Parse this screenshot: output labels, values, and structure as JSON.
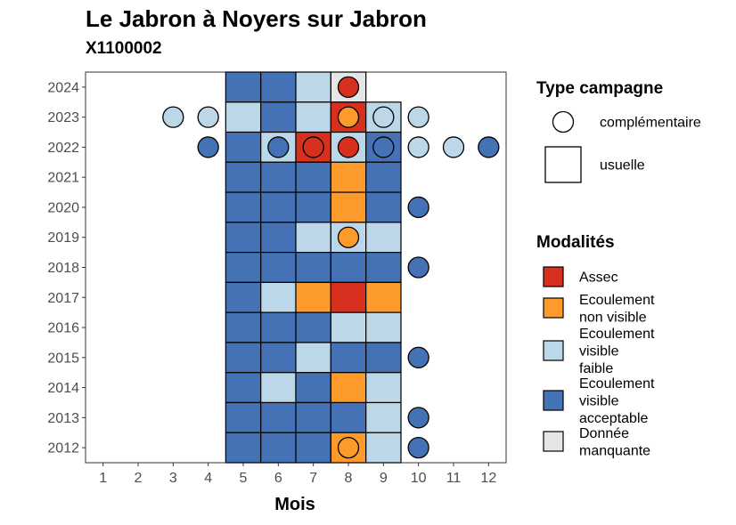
{
  "chart_data": {
    "type": "heatmap",
    "title": "Le Jabron à Noyers sur Jabron",
    "subtitle": "X1100002",
    "xlabel": "Mois",
    "ylabel": "",
    "x_ticks": [
      "1",
      "2",
      "3",
      "4",
      "5",
      "6",
      "7",
      "8",
      "9",
      "10",
      "11",
      "12"
    ],
    "y_ticks": [
      "2012",
      "2013",
      "2014",
      "2015",
      "2016",
      "2017",
      "2018",
      "2019",
      "2020",
      "2021",
      "2022",
      "2023",
      "2024"
    ],
    "xlim": [
      0.5,
      12.5
    ],
    "ylim": [
      2011.5,
      2024.5
    ],
    "colors": {
      "assec": "#d7301f",
      "ecoulement_non_visible": "#fd9a2c",
      "ecoulement_visible_faible": "#bcd7e7",
      "ecoulement_visible_acceptable": "#4472b4",
      "donnee_manquante": "#e6e6e6"
    },
    "legend_campagne": {
      "title": "Type campagne",
      "entries": [
        {
          "label": "complémentaire",
          "shape": "circle"
        },
        {
          "label": "usuelle",
          "shape": "square"
        }
      ]
    },
    "legend_modalites": {
      "title": "Modalités",
      "entries": [
        {
          "key": "assec",
          "lines": [
            "Assec"
          ]
        },
        {
          "key": "ecoulement_non_visible",
          "lines": [
            "Ecoulement",
            "non visible"
          ]
        },
        {
          "key": "ecoulement_visible_faible",
          "lines": [
            "Ecoulement",
            "visible",
            "faible"
          ]
        },
        {
          "key": "ecoulement_visible_acceptable",
          "lines": [
            "Ecoulement",
            "visible",
            "acceptable"
          ]
        },
        {
          "key": "donnee_manquante",
          "lines": [
            "Donnée",
            "manquante"
          ]
        }
      ]
    },
    "usuelle": [
      {
        "year": 2024,
        "month": 5,
        "value": "ecoulement_visible_acceptable"
      },
      {
        "year": 2024,
        "month": 6,
        "value": "ecoulement_visible_acceptable"
      },
      {
        "year": 2024,
        "month": 7,
        "value": "ecoulement_visible_faible"
      },
      {
        "year": 2024,
        "month": 8,
        "value": "donnee_manquante"
      },
      {
        "year": 2023,
        "month": 5,
        "value": "ecoulement_visible_faible"
      },
      {
        "year": 2023,
        "month": 6,
        "value": "ecoulement_visible_acceptable"
      },
      {
        "year": 2023,
        "month": 7,
        "value": "ecoulement_visible_faible"
      },
      {
        "year": 2023,
        "month": 8,
        "value": "assec"
      },
      {
        "year": 2023,
        "month": 9,
        "value": "ecoulement_visible_faible"
      },
      {
        "year": 2022,
        "month": 5,
        "value": "ecoulement_visible_acceptable"
      },
      {
        "year": 2022,
        "month": 6,
        "value": "ecoulement_visible_faible"
      },
      {
        "year": 2022,
        "month": 7,
        "value": "assec"
      },
      {
        "year": 2022,
        "month": 8,
        "value": "ecoulement_visible_faible"
      },
      {
        "year": 2022,
        "month": 9,
        "value": "ecoulement_visible_acceptable"
      },
      {
        "year": 2021,
        "month": 5,
        "value": "ecoulement_visible_acceptable"
      },
      {
        "year": 2021,
        "month": 6,
        "value": "ecoulement_visible_acceptable"
      },
      {
        "year": 2021,
        "month": 7,
        "value": "ecoulement_visible_acceptable"
      },
      {
        "year": 2021,
        "month": 8,
        "value": "ecoulement_non_visible"
      },
      {
        "year": 2021,
        "month": 9,
        "value": "ecoulement_visible_acceptable"
      },
      {
        "year": 2020,
        "month": 5,
        "value": "ecoulement_visible_acceptable"
      },
      {
        "year": 2020,
        "month": 6,
        "value": "ecoulement_visible_acceptable"
      },
      {
        "year": 2020,
        "month": 7,
        "value": "ecoulement_visible_acceptable"
      },
      {
        "year": 2020,
        "month": 8,
        "value": "ecoulement_non_visible"
      },
      {
        "year": 2020,
        "month": 9,
        "value": "ecoulement_visible_acceptable"
      },
      {
        "year": 2019,
        "month": 5,
        "value": "ecoulement_visible_acceptable"
      },
      {
        "year": 2019,
        "month": 6,
        "value": "ecoulement_visible_acceptable"
      },
      {
        "year": 2019,
        "month": 7,
        "value": "ecoulement_visible_faible"
      },
      {
        "year": 2019,
        "month": 8,
        "value": "ecoulement_visible_faible"
      },
      {
        "year": 2019,
        "month": 9,
        "value": "ecoulement_visible_faible"
      },
      {
        "year": 2018,
        "month": 5,
        "value": "ecoulement_visible_acceptable"
      },
      {
        "year": 2018,
        "month": 6,
        "value": "ecoulement_visible_acceptable"
      },
      {
        "year": 2018,
        "month": 7,
        "value": "ecoulement_visible_acceptable"
      },
      {
        "year": 2018,
        "month": 8,
        "value": "ecoulement_visible_acceptable"
      },
      {
        "year": 2018,
        "month": 9,
        "value": "ecoulement_visible_acceptable"
      },
      {
        "year": 2017,
        "month": 5,
        "value": "ecoulement_visible_acceptable"
      },
      {
        "year": 2017,
        "month": 6,
        "value": "ecoulement_visible_faible"
      },
      {
        "year": 2017,
        "month": 7,
        "value": "ecoulement_non_visible"
      },
      {
        "year": 2017,
        "month": 8,
        "value": "assec"
      },
      {
        "year": 2017,
        "month": 9,
        "value": "ecoulement_non_visible"
      },
      {
        "year": 2016,
        "month": 5,
        "value": "ecoulement_visible_acceptable"
      },
      {
        "year": 2016,
        "month": 6,
        "value": "ecoulement_visible_acceptable"
      },
      {
        "year": 2016,
        "month": 7,
        "value": "ecoulement_visible_acceptable"
      },
      {
        "year": 2016,
        "month": 8,
        "value": "ecoulement_visible_faible"
      },
      {
        "year": 2016,
        "month": 9,
        "value": "ecoulement_visible_faible"
      },
      {
        "year": 2015,
        "month": 5,
        "value": "ecoulement_visible_acceptable"
      },
      {
        "year": 2015,
        "month": 6,
        "value": "ecoulement_visible_acceptable"
      },
      {
        "year": 2015,
        "month": 7,
        "value": "ecoulement_visible_faible"
      },
      {
        "year": 2015,
        "month": 8,
        "value": "ecoulement_visible_acceptable"
      },
      {
        "year": 2015,
        "month": 9,
        "value": "ecoulement_visible_acceptable"
      },
      {
        "year": 2014,
        "month": 5,
        "value": "ecoulement_visible_acceptable"
      },
      {
        "year": 2014,
        "month": 6,
        "value": "ecoulement_visible_faible"
      },
      {
        "year": 2014,
        "month": 7,
        "value": "ecoulement_visible_acceptable"
      },
      {
        "year": 2014,
        "month": 8,
        "value": "ecoulement_non_visible"
      },
      {
        "year": 2014,
        "month": 9,
        "value": "ecoulement_visible_faible"
      },
      {
        "year": 2013,
        "month": 5,
        "value": "ecoulement_visible_acceptable"
      },
      {
        "year": 2013,
        "month": 6,
        "value": "ecoulement_visible_acceptable"
      },
      {
        "year": 2013,
        "month": 7,
        "value": "ecoulement_visible_acceptable"
      },
      {
        "year": 2013,
        "month": 8,
        "value": "ecoulement_visible_acceptable"
      },
      {
        "year": 2013,
        "month": 9,
        "value": "ecoulement_visible_faible"
      },
      {
        "year": 2012,
        "month": 5,
        "value": "ecoulement_visible_acceptable"
      },
      {
        "year": 2012,
        "month": 6,
        "value": "ecoulement_visible_acceptable"
      },
      {
        "year": 2012,
        "month": 7,
        "value": "ecoulement_visible_acceptable"
      },
      {
        "year": 2012,
        "month": 8,
        "value": "ecoulement_non_visible"
      },
      {
        "year": 2012,
        "month": 9,
        "value": "ecoulement_visible_faible"
      }
    ],
    "complementaire": [
      {
        "year": 2024,
        "month": 8,
        "value": "assec"
      },
      {
        "year": 2023,
        "month": 3,
        "value": "ecoulement_visible_faible"
      },
      {
        "year": 2023,
        "month": 4,
        "value": "ecoulement_visible_faible"
      },
      {
        "year": 2023,
        "month": 8,
        "value": "ecoulement_non_visible"
      },
      {
        "year": 2023,
        "month": 9,
        "value": "ecoulement_visible_faible"
      },
      {
        "year": 2023,
        "month": 10,
        "value": "ecoulement_visible_faible"
      },
      {
        "year": 2022,
        "month": 4,
        "value": "ecoulement_visible_acceptable"
      },
      {
        "year": 2022,
        "month": 6,
        "value": "ecoulement_visible_acceptable"
      },
      {
        "year": 2022,
        "month": 7,
        "value": "assec"
      },
      {
        "year": 2022,
        "month": 8,
        "value": "assec"
      },
      {
        "year": 2022,
        "month": 9,
        "value": "ecoulement_visible_acceptable"
      },
      {
        "year": 2022,
        "month": 10,
        "value": "ecoulement_visible_faible"
      },
      {
        "year": 2022,
        "month": 11,
        "value": "ecoulement_visible_faible"
      },
      {
        "year": 2022,
        "month": 12,
        "value": "ecoulement_visible_acceptable"
      },
      {
        "year": 2020,
        "month": 10,
        "value": "ecoulement_visible_acceptable"
      },
      {
        "year": 2019,
        "month": 8,
        "value": "ecoulement_non_visible"
      },
      {
        "year": 2018,
        "month": 10,
        "value": "ecoulement_visible_acceptable"
      },
      {
        "year": 2015,
        "month": 10,
        "value": "ecoulement_visible_acceptable"
      },
      {
        "year": 2013,
        "month": 10,
        "value": "ecoulement_visible_acceptable"
      },
      {
        "year": 2012,
        "month": 8,
        "value": "ecoulement_non_visible"
      },
      {
        "year": 2012,
        "month": 10,
        "value": "ecoulement_visible_acceptable"
      }
    ]
  }
}
